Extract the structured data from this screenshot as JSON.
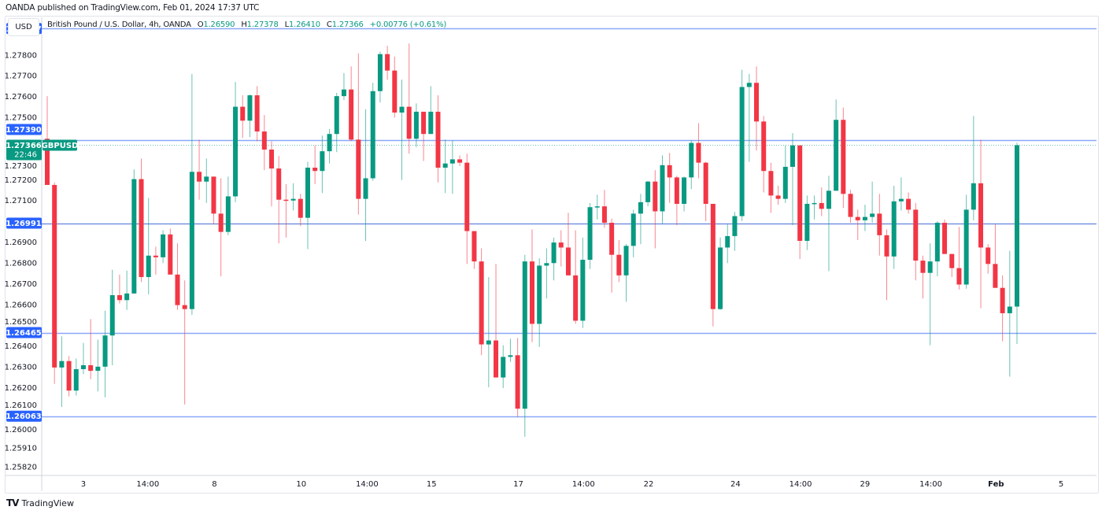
{
  "publish_note": "OANDA published on TradingView.com, Feb 01, 2024 17:37 UTC",
  "currency_button": "USD",
  "legend": {
    "title": "British Pound / U.S. Dollar, 4h, OANDA",
    "o_label": "O",
    "o": "1.26590",
    "h_label": "H",
    "h": "1.27378",
    "l_label": "L",
    "l": "1.26410",
    "c_label": "C",
    "c": "1.27366",
    "change": "+0.00776 (+0.61%)"
  },
  "footer_logo": "TradingView",
  "colors": {
    "up": "#089981",
    "down": "#f23645",
    "level": "#2962ff",
    "level_line": "#8aa8f8"
  },
  "chart_data": {
    "type": "candlestick",
    "symbol_tag": "GBPUSD",
    "title": "British Pound / U.S. Dollar, 4h, OANDA",
    "ylim": [
      1.25778,
      1.27981
    ],
    "y_ticks": [
      "1.27800",
      "1.27700",
      "1.27600",
      "1.27500",
      "1.27300",
      "1.27200",
      "1.27100",
      "1.26900",
      "1.26800",
      "1.26700",
      "1.26600",
      "1.26500",
      "1.26400",
      "1.26300",
      "1.26200",
      "1.26100",
      "1.26000",
      "1.25910",
      "1.25820"
    ],
    "x_ticks": [
      {
        "label": "3",
        "index": 5.0
      },
      {
        "label": "14:00",
        "index": 13.9
      },
      {
        "label": "8",
        "index": 23.1
      },
      {
        "label": "10",
        "index": 35.1
      },
      {
        "label": "14:00",
        "index": 44.2
      },
      {
        "label": "15",
        "index": 53.1
      },
      {
        "label": "17",
        "index": 65.1
      },
      {
        "label": "14:00",
        "index": 74.1
      },
      {
        "label": "22",
        "index": 83.1
      },
      {
        "label": "24",
        "index": 95.1
      },
      {
        "label": "14:00",
        "index": 104.1
      },
      {
        "label": "29",
        "index": 113.0
      },
      {
        "label": "14:00",
        "index": 122.1
      },
      {
        "label": "Feb",
        "index": 131.1,
        "bold": true
      },
      {
        "label": "5",
        "index": 140.1
      }
    ],
    "levels": [
      {
        "price": 1.27927,
        "label": "1.27927"
      },
      {
        "price": 1.2739,
        "label": "1.27390"
      },
      {
        "price": 1.26991,
        "label": "1.26991",
        "strong": true
      },
      {
        "price": 1.26465,
        "label": "1.26465"
      },
      {
        "price": 1.26063,
        "label": "1.26063"
      }
    ],
    "current": {
      "price": 1.27366,
      "label": "1.27366",
      "countdown": "22:46"
    },
    "ohlc": [
      [
        1.27397,
        1.27602,
        1.27175,
        1.27175
      ],
      [
        1.27175,
        1.27187,
        1.26218,
        1.26297
      ],
      [
        1.26297,
        1.26447,
        1.26107,
        1.26328
      ],
      [
        1.26328,
        1.26352,
        1.26158,
        1.26186
      ],
      [
        1.26186,
        1.2634,
        1.26162,
        1.26289
      ],
      [
        1.26289,
        1.26415,
        1.26265,
        1.26308
      ],
      [
        1.26308,
        1.2653,
        1.26241,
        1.26281
      ],
      [
        1.26281,
        1.26431,
        1.26182,
        1.26301
      ],
      [
        1.26301,
        1.2657,
        1.26154,
        1.26451
      ],
      [
        1.26451,
        1.26767,
        1.26308,
        1.26645
      ],
      [
        1.26645,
        1.26744,
        1.26605,
        1.26621
      ],
      [
        1.26621,
        1.26763,
        1.26574,
        1.26653
      ],
      [
        1.26653,
        1.2725,
        1.26653,
        1.27203
      ],
      [
        1.27203,
        1.27302,
        1.26708,
        1.26732
      ],
      [
        1.26732,
        1.27112,
        1.26649,
        1.26835
      ],
      [
        1.26835,
        1.26878,
        1.26744,
        1.26827
      ],
      [
        1.26827,
        1.26957,
        1.26799,
        1.26937
      ],
      [
        1.26937,
        1.26965,
        1.26744,
        1.26744
      ],
      [
        1.26744,
        1.26894,
        1.26574,
        1.26597
      ],
      [
        1.26597,
        1.26716,
        1.26119,
        1.26578
      ],
      [
        1.26578,
        1.27709,
        1.2655,
        1.27238
      ],
      [
        1.27238,
        1.27393,
        1.27104,
        1.27191
      ],
      [
        1.27191,
        1.27302,
        1.27088,
        1.27215
      ],
      [
        1.27215,
        1.27215,
        1.26985,
        1.27037
      ],
      [
        1.27037,
        1.27207,
        1.26736,
        1.26949
      ],
      [
        1.26949,
        1.27215,
        1.26933,
        1.2712
      ],
      [
        1.2712,
        1.2767,
        1.27092,
        1.27551
      ],
      [
        1.27551,
        1.27606,
        1.27401,
        1.27484
      ],
      [
        1.27484,
        1.2761,
        1.27405,
        1.27606
      ],
      [
        1.27606,
        1.2765,
        1.27385,
        1.27432
      ],
      [
        1.27432,
        1.27511,
        1.27246,
        1.27345
      ],
      [
        1.27345,
        1.27385,
        1.27072,
        1.27254
      ],
      [
        1.27254,
        1.27314,
        1.26894,
        1.27104
      ],
      [
        1.27104,
        1.27179,
        1.26922,
        1.271
      ],
      [
        1.271,
        1.27183,
        1.27052,
        1.27108
      ],
      [
        1.27108,
        1.27132,
        1.26977,
        1.27017
      ],
      [
        1.27017,
        1.27286,
        1.26866,
        1.27258
      ],
      [
        1.27258,
        1.27365,
        1.27179,
        1.27242
      ],
      [
        1.27242,
        1.27412,
        1.27136,
        1.27337
      ],
      [
        1.27337,
        1.27444,
        1.27278,
        1.2742
      ],
      [
        1.2742,
        1.27618,
        1.27333,
        1.27602
      ],
      [
        1.27602,
        1.27713,
        1.27583,
        1.27634
      ],
      [
        1.27634,
        1.27745,
        1.27385,
        1.27393
      ],
      [
        1.27393,
        1.27808,
        1.27033,
        1.27108
      ],
      [
        1.27108,
        1.27539,
        1.26906,
        1.27207
      ],
      [
        1.27207,
        1.27666,
        1.27195,
        1.27626
      ],
      [
        1.27626,
        1.27816,
        1.27571,
        1.27804
      ],
      [
        1.27804,
        1.27844,
        1.27681,
        1.27725
      ],
      [
        1.27725,
        1.27792,
        1.27499,
        1.27523
      ],
      [
        1.27523,
        1.27681,
        1.27199,
        1.27551
      ],
      [
        1.27551,
        1.27855,
        1.27325,
        1.27397
      ],
      [
        1.27397,
        1.27567,
        1.27357,
        1.27527
      ],
      [
        1.27527,
        1.27527,
        1.2729,
        1.2742
      ],
      [
        1.2742,
        1.2765,
        1.2742,
        1.27527
      ],
      [
        1.27527,
        1.27606,
        1.27187,
        1.27258
      ],
      [
        1.27258,
        1.27393,
        1.27136,
        1.27278
      ],
      [
        1.27278,
        1.27389,
        1.27132,
        1.27298
      ],
      [
        1.27298,
        1.27317,
        1.27266,
        1.27282
      ],
      [
        1.27282,
        1.27325,
        1.26795,
        1.26953
      ],
      [
        1.26953,
        1.26953,
        1.26771,
        1.26807
      ],
      [
        1.26807,
        1.2687,
        1.26356,
        1.26408
      ],
      [
        1.26408,
        1.26732,
        1.26202,
        1.26427
      ],
      [
        1.26427,
        1.26795,
        1.26249,
        1.26249
      ],
      [
        1.26249,
        1.26404,
        1.26198,
        1.26348
      ],
      [
        1.26348,
        1.26435,
        1.26324,
        1.26356
      ],
      [
        1.26356,
        1.26439,
        1.26059,
        1.26099
      ],
      [
        1.26099,
        1.26839,
        1.25964,
        1.26807
      ],
      [
        1.26807,
        1.26961,
        1.26419,
        1.26507
      ],
      [
        1.26507,
        1.26823,
        1.26396,
        1.26787
      ],
      [
        1.26787,
        1.2687,
        1.26629,
        1.26799
      ],
      [
        1.26799,
        1.26922,
        1.26716,
        1.26898
      ],
      [
        1.26898,
        1.26957,
        1.26783,
        1.26874
      ],
      [
        1.26874,
        1.27041,
        1.2674,
        1.2674
      ],
      [
        1.2674,
        1.26957,
        1.26507,
        1.26522
      ],
      [
        1.26522,
        1.26922,
        1.26487,
        1.26815
      ],
      [
        1.26815,
        1.27088,
        1.26771,
        1.27068
      ],
      [
        1.27068,
        1.27128,
        1.27009,
        1.27072
      ],
      [
        1.27072,
        1.27151,
        1.26969,
        1.26993
      ],
      [
        1.26993,
        1.27013,
        1.26657,
        1.26839
      ],
      [
        1.26839,
        1.2691,
        1.26708,
        1.2674
      ],
      [
        1.2674,
        1.2689,
        1.26613,
        1.26882
      ],
      [
        1.26882,
        1.27056,
        1.26827,
        1.27037
      ],
      [
        1.27037,
        1.27132,
        1.2689,
        1.27092
      ],
      [
        1.27092,
        1.27195,
        1.27072,
        1.27191
      ],
      [
        1.27191,
        1.27246,
        1.2687,
        1.27048
      ],
      [
        1.27048,
        1.27317,
        1.26989,
        1.2727
      ],
      [
        1.2727,
        1.27329,
        1.27088,
        1.27211
      ],
      [
        1.27211,
        1.27219,
        1.26981,
        1.27084
      ],
      [
        1.27084,
        1.27215,
        1.27048,
        1.27211
      ],
      [
        1.27211,
        1.27389,
        1.27155,
        1.27377
      ],
      [
        1.27377,
        1.27472,
        1.27207,
        1.27282
      ],
      [
        1.27282,
        1.27286,
        1.27001,
        1.27084
      ],
      [
        1.27084,
        1.27084,
        1.26495,
        1.26578
      ],
      [
        1.26578,
        1.26922,
        1.26574,
        1.26874
      ],
      [
        1.26874,
        1.26985,
        1.26799,
        1.26929
      ],
      [
        1.26929,
        1.27045,
        1.26858,
        1.27025
      ],
      [
        1.27025,
        1.27729,
        1.27001,
        1.27646
      ],
      [
        1.27646,
        1.27709,
        1.27286,
        1.27666
      ],
      [
        1.27666,
        1.27745,
        1.27341,
        1.2748
      ],
      [
        1.2748,
        1.27507,
        1.27139,
        1.27242
      ],
      [
        1.27242,
        1.27282,
        1.27041,
        1.27124
      ],
      [
        1.27124,
        1.27171,
        1.2708,
        1.27108
      ],
      [
        1.27108,
        1.27365,
        1.27088,
        1.27262
      ],
      [
        1.27262,
        1.27424,
        1.26981,
        1.27365
      ],
      [
        1.27365,
        1.27365,
        1.26819,
        1.26906
      ],
      [
        1.26906,
        1.27124,
        1.26862,
        1.27084
      ],
      [
        1.27084,
        1.27124,
        1.27009,
        1.27088
      ],
      [
        1.27088,
        1.27163,
        1.27025,
        1.2706
      ],
      [
        1.2706,
        1.27219,
        1.2676,
        1.27147
      ],
      [
        1.27147,
        1.27586,
        1.27147,
        1.27488
      ],
      [
        1.27488,
        1.27547,
        1.27064,
        1.27132
      ],
      [
        1.27132,
        1.27151,
        1.26993,
        1.27021
      ],
      [
        1.27021,
        1.27056,
        1.2691,
        1.27005
      ],
      [
        1.27005,
        1.2708,
        1.26953,
        1.27021
      ],
      [
        1.27021,
        1.27191,
        1.26993,
        1.27037
      ],
      [
        1.27037,
        1.27132,
        1.26835,
        1.26933
      ],
      [
        1.26933,
        1.26961,
        1.26621,
        1.26831
      ],
      [
        1.26831,
        1.27171,
        1.26771,
        1.27096
      ],
      [
        1.27096,
        1.27211,
        1.27052,
        1.27108
      ],
      [
        1.27108,
        1.27139,
        1.27037,
        1.27056
      ],
      [
        1.27056,
        1.27088,
        1.26716,
        1.26811
      ],
      [
        1.26811,
        1.26835,
        1.26629,
        1.26752
      ],
      [
        1.26752,
        1.26894,
        1.26404,
        1.26807
      ],
      [
        1.26807,
        1.27001,
        1.26736,
        1.26993
      ],
      [
        1.26993,
        1.27009,
        1.26843,
        1.26843
      ],
      [
        1.26843,
        1.26843,
        1.26732,
        1.26775
      ],
      [
        1.26775,
        1.26973,
        1.26672,
        1.26696
      ],
      [
        1.26696,
        1.27128,
        1.26676,
        1.27056
      ],
      [
        1.27056,
        1.27507,
        1.27005,
        1.27183
      ],
      [
        1.27183,
        1.27393,
        1.26582,
        1.26874
      ],
      [
        1.26874,
        1.2689,
        1.26748,
        1.26795
      ],
      [
        1.26795,
        1.26985,
        1.2668,
        1.2668
      ],
      [
        1.2668,
        1.2674,
        1.26423,
        1.26558
      ],
      [
        1.26558,
        1.26858,
        1.26253,
        1.2659
      ],
      [
        1.2659,
        1.27378,
        1.2641,
        1.27366
      ]
    ]
  }
}
